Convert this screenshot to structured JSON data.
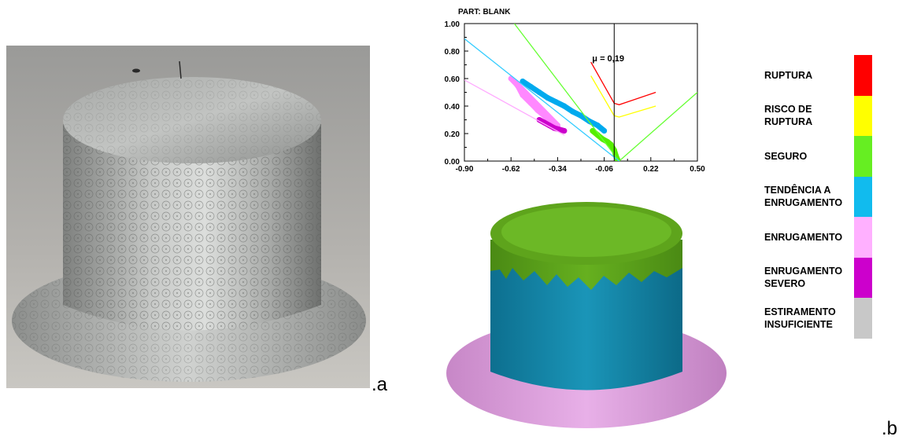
{
  "panel_a_tag": ".a",
  "panel_b_tag": ".b",
  "chart_data": {
    "type": "scatter",
    "title": "PART: BLANK",
    "xlabel": "",
    "ylabel": "",
    "xlim": [
      -0.9,
      0.5
    ],
    "ylim": [
      0.0,
      1.0
    ],
    "x_ticks": [
      "-0.90",
      "-0.62",
      "-0.34",
      "-0.06",
      "0.22",
      "0.50"
    ],
    "y_ticks": [
      "0.00",
      "0.20",
      "0.40",
      "0.60",
      "0.80",
      "1.00"
    ],
    "annotation": "μ = 0,19",
    "annotation_x": 0.0,
    "curves": [
      {
        "key": "ruptura",
        "color": "#ff0000",
        "points": [
          [
            -0.14,
            0.72
          ],
          [
            0.0,
            0.42
          ],
          [
            0.03,
            0.41
          ],
          [
            0.25,
            0.5
          ]
        ]
      },
      {
        "key": "risco",
        "color": "#ffff00",
        "points": [
          [
            -0.14,
            0.62
          ],
          [
            0.0,
            0.33
          ],
          [
            0.03,
            0.32
          ],
          [
            0.25,
            0.4
          ]
        ]
      },
      {
        "key": "seguro_limit",
        "color": "#66ff33",
        "points": [
          [
            -0.6,
            1.0
          ],
          [
            0.03,
            0.0
          ],
          [
            0.5,
            0.5
          ]
        ]
      },
      {
        "key": "tendencia_limit",
        "color": "#33ccff",
        "points": [
          [
            -0.9,
            0.89
          ],
          [
            0.03,
            0.0
          ]
        ]
      },
      {
        "key": "enrugamento_limit",
        "color": "#ffaaff",
        "points": [
          [
            -0.9,
            0.59
          ],
          [
            -0.3,
            0.19
          ]
        ]
      }
    ],
    "clusters": [
      {
        "key": "enrugamento",
        "color": "#ff88ff",
        "points": [
          [
            -0.62,
            0.6
          ],
          [
            -0.58,
            0.55
          ],
          [
            -0.55,
            0.48
          ],
          [
            -0.5,
            0.42
          ],
          [
            -0.46,
            0.37
          ],
          [
            -0.42,
            0.33
          ],
          [
            -0.38,
            0.29
          ],
          [
            -0.34,
            0.26
          ],
          [
            -0.6,
            0.58
          ],
          [
            -0.52,
            0.45
          ]
        ]
      },
      {
        "key": "severo",
        "color": "#cc00cc",
        "points": [
          [
            -0.45,
            0.3
          ],
          [
            -0.42,
            0.28
          ],
          [
            -0.39,
            0.26
          ],
          [
            -0.36,
            0.24
          ],
          [
            -0.33,
            0.23
          ],
          [
            -0.3,
            0.22
          ]
        ]
      },
      {
        "key": "tendencia",
        "color": "#00aaee",
        "points": [
          [
            -0.55,
            0.58
          ],
          [
            -0.5,
            0.54
          ],
          [
            -0.45,
            0.5
          ],
          [
            -0.4,
            0.46
          ],
          [
            -0.35,
            0.43
          ],
          [
            -0.3,
            0.4
          ],
          [
            -0.25,
            0.36
          ],
          [
            -0.2,
            0.33
          ],
          [
            -0.15,
            0.29
          ],
          [
            -0.1,
            0.26
          ],
          [
            -0.06,
            0.22
          ]
        ]
      },
      {
        "key": "seguro",
        "color": "#55ee00",
        "points": [
          [
            -0.13,
            0.22
          ],
          [
            -0.1,
            0.19
          ],
          [
            -0.07,
            0.16
          ],
          [
            -0.04,
            0.14
          ],
          [
            -0.02,
            0.12
          ],
          [
            0.0,
            0.08
          ],
          [
            0.01,
            0.04
          ],
          [
            0.02,
            0.01
          ]
        ]
      }
    ]
  },
  "legend": [
    {
      "label": "RUPTURA",
      "color": "#ff0000"
    },
    {
      "label": "RISCO DE RUPTURA",
      "color": "#ffff00"
    },
    {
      "label": "SEGURO",
      "color": "#66ee22"
    },
    {
      "label": "TENDÊNCIA A ENRUGAMENTO",
      "color": "#11bbee"
    },
    {
      "label": "ENRUGAMENTO",
      "color": "#ffb0ff"
    },
    {
      "label": "ENRUGAMENTO SEVERO",
      "color": "#cc00cc"
    },
    {
      "label": "ESTIRAMENTO INSUFICIENTE",
      "color": "#c8c8c8"
    }
  ]
}
